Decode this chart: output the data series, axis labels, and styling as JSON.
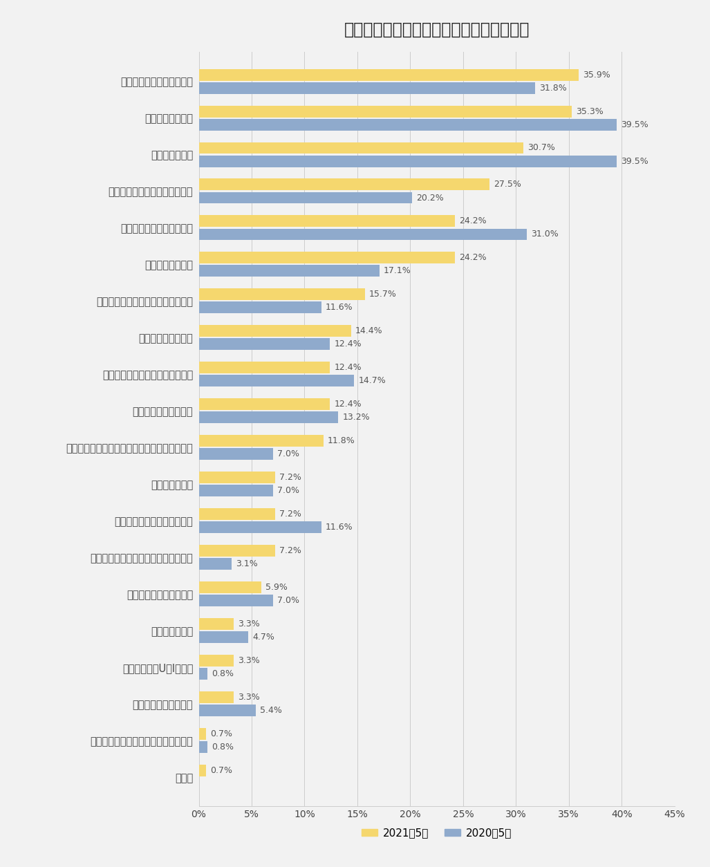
{
  "title": "新しい職場に求めること（３つまで選択）",
  "categories": [
    "仕事内容にやりがいがある",
    "給与・年収アップ",
    "良好な人間関係",
    "スキルを身につけて成長できる",
    "プライベートな時間の確保",
    "丁寧な教育・研修",
    "新しい仕事内容にチャレンジできる",
    "希望の仕事に就ける",
    "前職での経験やスキルが活かせる",
    "尊敬できる上司や先輩",
    "自信を持って商品やサービスをおススメできる",
    "残業時間の短縮",
    "顧客に喜ばれる仕事ができる",
    "会社や経営層のビジョンに共感できる",
    "大手企業への就職・転職",
    "通勤時間の短縮",
    "地方都市へのU・Iターン",
    "上京しての就職・転職",
    "中小・ベンチャー企業への就職・転職",
    "その他"
  ],
  "values_2021": [
    35.9,
    35.3,
    30.7,
    27.5,
    24.2,
    24.2,
    15.7,
    14.4,
    12.4,
    12.4,
    11.8,
    7.2,
    7.2,
    7.2,
    5.9,
    3.3,
    3.3,
    3.3,
    0.7,
    0.7
  ],
  "values_2020": [
    31.8,
    39.5,
    39.5,
    20.2,
    31.0,
    17.1,
    11.6,
    12.4,
    14.7,
    13.2,
    7.0,
    7.0,
    11.6,
    3.1,
    7.0,
    4.7,
    0.8,
    5.4,
    0.8,
    0.0
  ],
  "color_2021": "#F5D76E",
  "color_2020": "#8FAACC",
  "legend_2021": "2021年5月",
  "legend_2020": "2020年5月",
  "xlim": [
    0,
    45
  ],
  "xtick_values": [
    0,
    5,
    10,
    15,
    20,
    25,
    30,
    35,
    40,
    45
  ],
  "background_color": "#F2F2F2",
  "title_fontsize": 17,
  "label_fontsize": 10.5,
  "value_fontsize": 9
}
